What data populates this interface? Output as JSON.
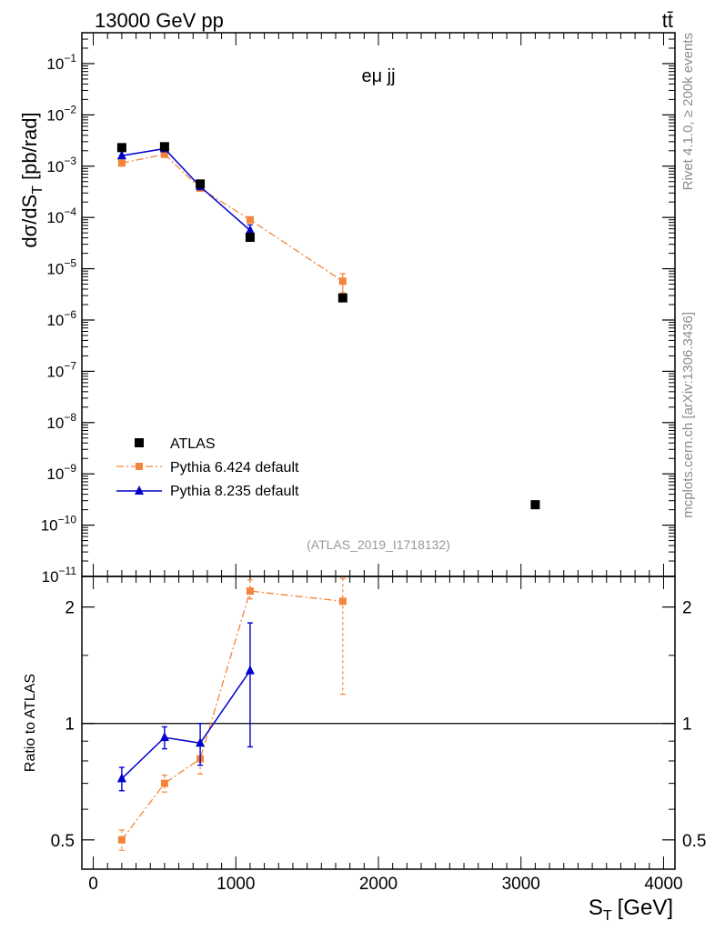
{
  "header": {
    "left": "13000 GeV pp",
    "right": "tt̄"
  },
  "side_labels": {
    "rivet": "Rivet 4.1.0, ≥ 200k events",
    "mcplots": "mcplots.cern.ch [arXiv:1306.3436]"
  },
  "colors": {
    "data": "#000000",
    "pythia6": "#f4843a",
    "pythia8": "#0000cc",
    "watermark": "#999999",
    "side_text": "#8c8c8c"
  },
  "chart_data": [
    {
      "type": "scatter",
      "name": "main-panel",
      "title": "eμ jj",
      "ylabel_main": "dσ/dS",
      "ylabel_sub": "T",
      "ylabel_unit": "[pb/rad]",
      "yscale": "log",
      "ylim": [
        1e-11,
        0.4
      ],
      "xlim": [
        -80,
        4080
      ],
      "ytick_exponents": [
        -11,
        -10,
        -9,
        -8,
        -7,
        -6,
        -5,
        -4,
        -3,
        -2,
        -1
      ],
      "ytick_base": "10",
      "watermark": "(ATLAS_2019_I1718132)",
      "legend": [
        "ATLAS",
        "Pythia 6.424 default",
        "Pythia 8.235 default"
      ],
      "series": [
        {
          "name": "ATLAS",
          "marker": "square",
          "x": [
            200,
            500,
            750,
            1100,
            1750,
            3100
          ],
          "y": [
            0.0023,
            0.0024,
            0.00045,
            4.1e-05,
            2.7e-06,
            2.5e-10
          ]
        },
        {
          "name": "Pythia 6.424 default",
          "marker": "small-square",
          "line": "dashdot",
          "x": [
            200,
            500,
            750,
            1100,
            1750
          ],
          "y": [
            0.00115,
            0.0017,
            0.00037,
            9e-05,
            5.7e-06
          ],
          "yerr": [
            2e-05,
            3e-05,
            1e-05,
            5e-06,
            2.3e-06
          ]
        },
        {
          "name": "Pythia 8.235 default",
          "marker": "triangle",
          "line": "solid",
          "x": [
            200,
            500,
            750,
            1100
          ],
          "y": [
            0.0016,
            0.0022,
            0.0004,
            5.6e-05
          ],
          "yerr": [
            3e-05,
            4e-05,
            1e-05,
            1.6e-05
          ]
        }
      ]
    },
    {
      "type": "scatter",
      "name": "ratio-panel",
      "ylabel": "Ratio to ATLAS",
      "xlabel_main": "S",
      "xlabel_sub": "T",
      "xlabel_unit": "[GeV]",
      "yscale": "log",
      "ylim": [
        0.42,
        2.4
      ],
      "xlim": [
        -80,
        4080
      ],
      "yticks": [
        0.5,
        1,
        2
      ],
      "ytick_labels": [
        "0.5",
        "1",
        "2"
      ],
      "xticks": [
        0,
        1000,
        2000,
        3000,
        4000
      ],
      "xtick_labels": [
        "0",
        "1000",
        "2000",
        "3000",
        "4000"
      ],
      "reference_line": 1,
      "series": [
        {
          "name": "Pythia 6.424 default",
          "x": [
            200,
            500,
            750,
            1100,
            1750
          ],
          "y": [
            0.5,
            0.7,
            0.81,
            2.2,
            2.07
          ],
          "yerr_low": [
            0.03,
            0.035,
            0.07,
            0.1,
            0.88
          ],
          "yerr_high": [
            0.03,
            0.035,
            0.07,
            0.15,
            0.3
          ]
        },
        {
          "name": "Pythia 8.235 default",
          "x": [
            200,
            500,
            750,
            1100
          ],
          "y": [
            0.72,
            0.92,
            0.89,
            1.37
          ],
          "yerr_low": [
            0.05,
            0.06,
            0.11,
            0.5
          ],
          "yerr_high": [
            0.05,
            0.06,
            0.11,
            0.45
          ]
        }
      ]
    }
  ]
}
